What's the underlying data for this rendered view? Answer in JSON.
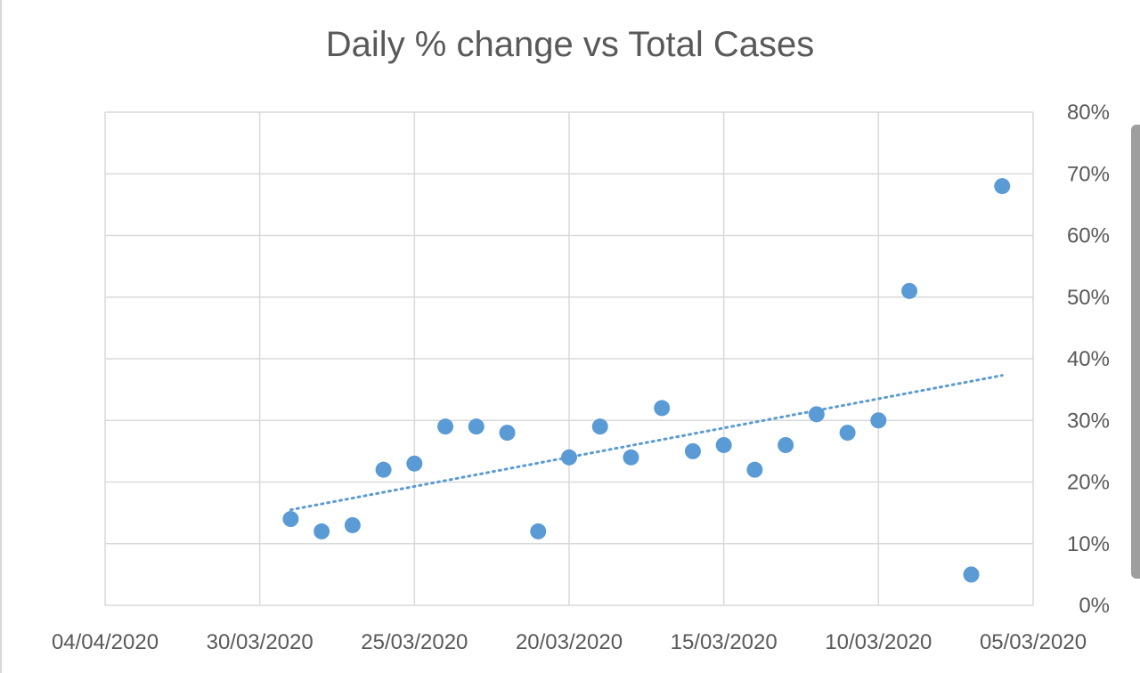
{
  "chart_data": {
    "type": "scatter",
    "title": "Daily % change vs Total Cases",
    "xlabel": "",
    "ylabel": "",
    "x_reversed": true,
    "xlim": [
      "2020-04-04",
      "2020-03-05"
    ],
    "ylim": [
      0,
      0.8
    ],
    "y_axis_position": "right",
    "grid": true,
    "legend": "none",
    "x_tick_labels": [
      "04/04/2020",
      "30/03/2020",
      "25/03/2020",
      "20/03/2020",
      "15/03/2020",
      "10/03/2020",
      "05/03/2020"
    ],
    "y_tick_labels": [
      "0%",
      "10%",
      "20%",
      "30%",
      "40%",
      "50%",
      "60%",
      "70%",
      "80%"
    ],
    "series": [
      {
        "color": "#5b9bd5",
        "points": [
          {
            "x": "2020-03-06",
            "y": 0.68
          },
          {
            "x": "2020-03-07",
            "y": 0.05
          },
          {
            "x": "2020-03-09",
            "y": 0.51
          },
          {
            "x": "2020-03-10",
            "y": 0.3
          },
          {
            "x": "2020-03-11",
            "y": 0.28
          },
          {
            "x": "2020-03-12",
            "y": 0.31
          },
          {
            "x": "2020-03-13",
            "y": 0.26
          },
          {
            "x": "2020-03-14",
            "y": 0.22
          },
          {
            "x": "2020-03-15",
            "y": 0.26
          },
          {
            "x": "2020-03-16",
            "y": 0.25
          },
          {
            "x": "2020-03-17",
            "y": 0.32
          },
          {
            "x": "2020-03-18",
            "y": 0.24
          },
          {
            "x": "2020-03-19",
            "y": 0.29
          },
          {
            "x": "2020-03-20",
            "y": 0.24
          },
          {
            "x": "2020-03-21",
            "y": 0.12
          },
          {
            "x": "2020-03-22",
            "y": 0.28
          },
          {
            "x": "2020-03-23",
            "y": 0.29
          },
          {
            "x": "2020-03-24",
            "y": 0.29
          },
          {
            "x": "2020-03-25",
            "y": 0.23
          },
          {
            "x": "2020-03-26",
            "y": 0.22
          },
          {
            "x": "2020-03-27",
            "y": 0.13
          },
          {
            "x": "2020-03-28",
            "y": 0.12
          },
          {
            "x": "2020-03-29",
            "y": 0.14
          }
        ]
      }
    ],
    "trendline": {
      "type": "linear",
      "style": "dotted",
      "color": "#5b9bd5",
      "from": {
        "x": "2020-03-29",
        "y": 0.155
      },
      "to": {
        "x": "2020-03-06",
        "y": 0.373
      }
    }
  }
}
